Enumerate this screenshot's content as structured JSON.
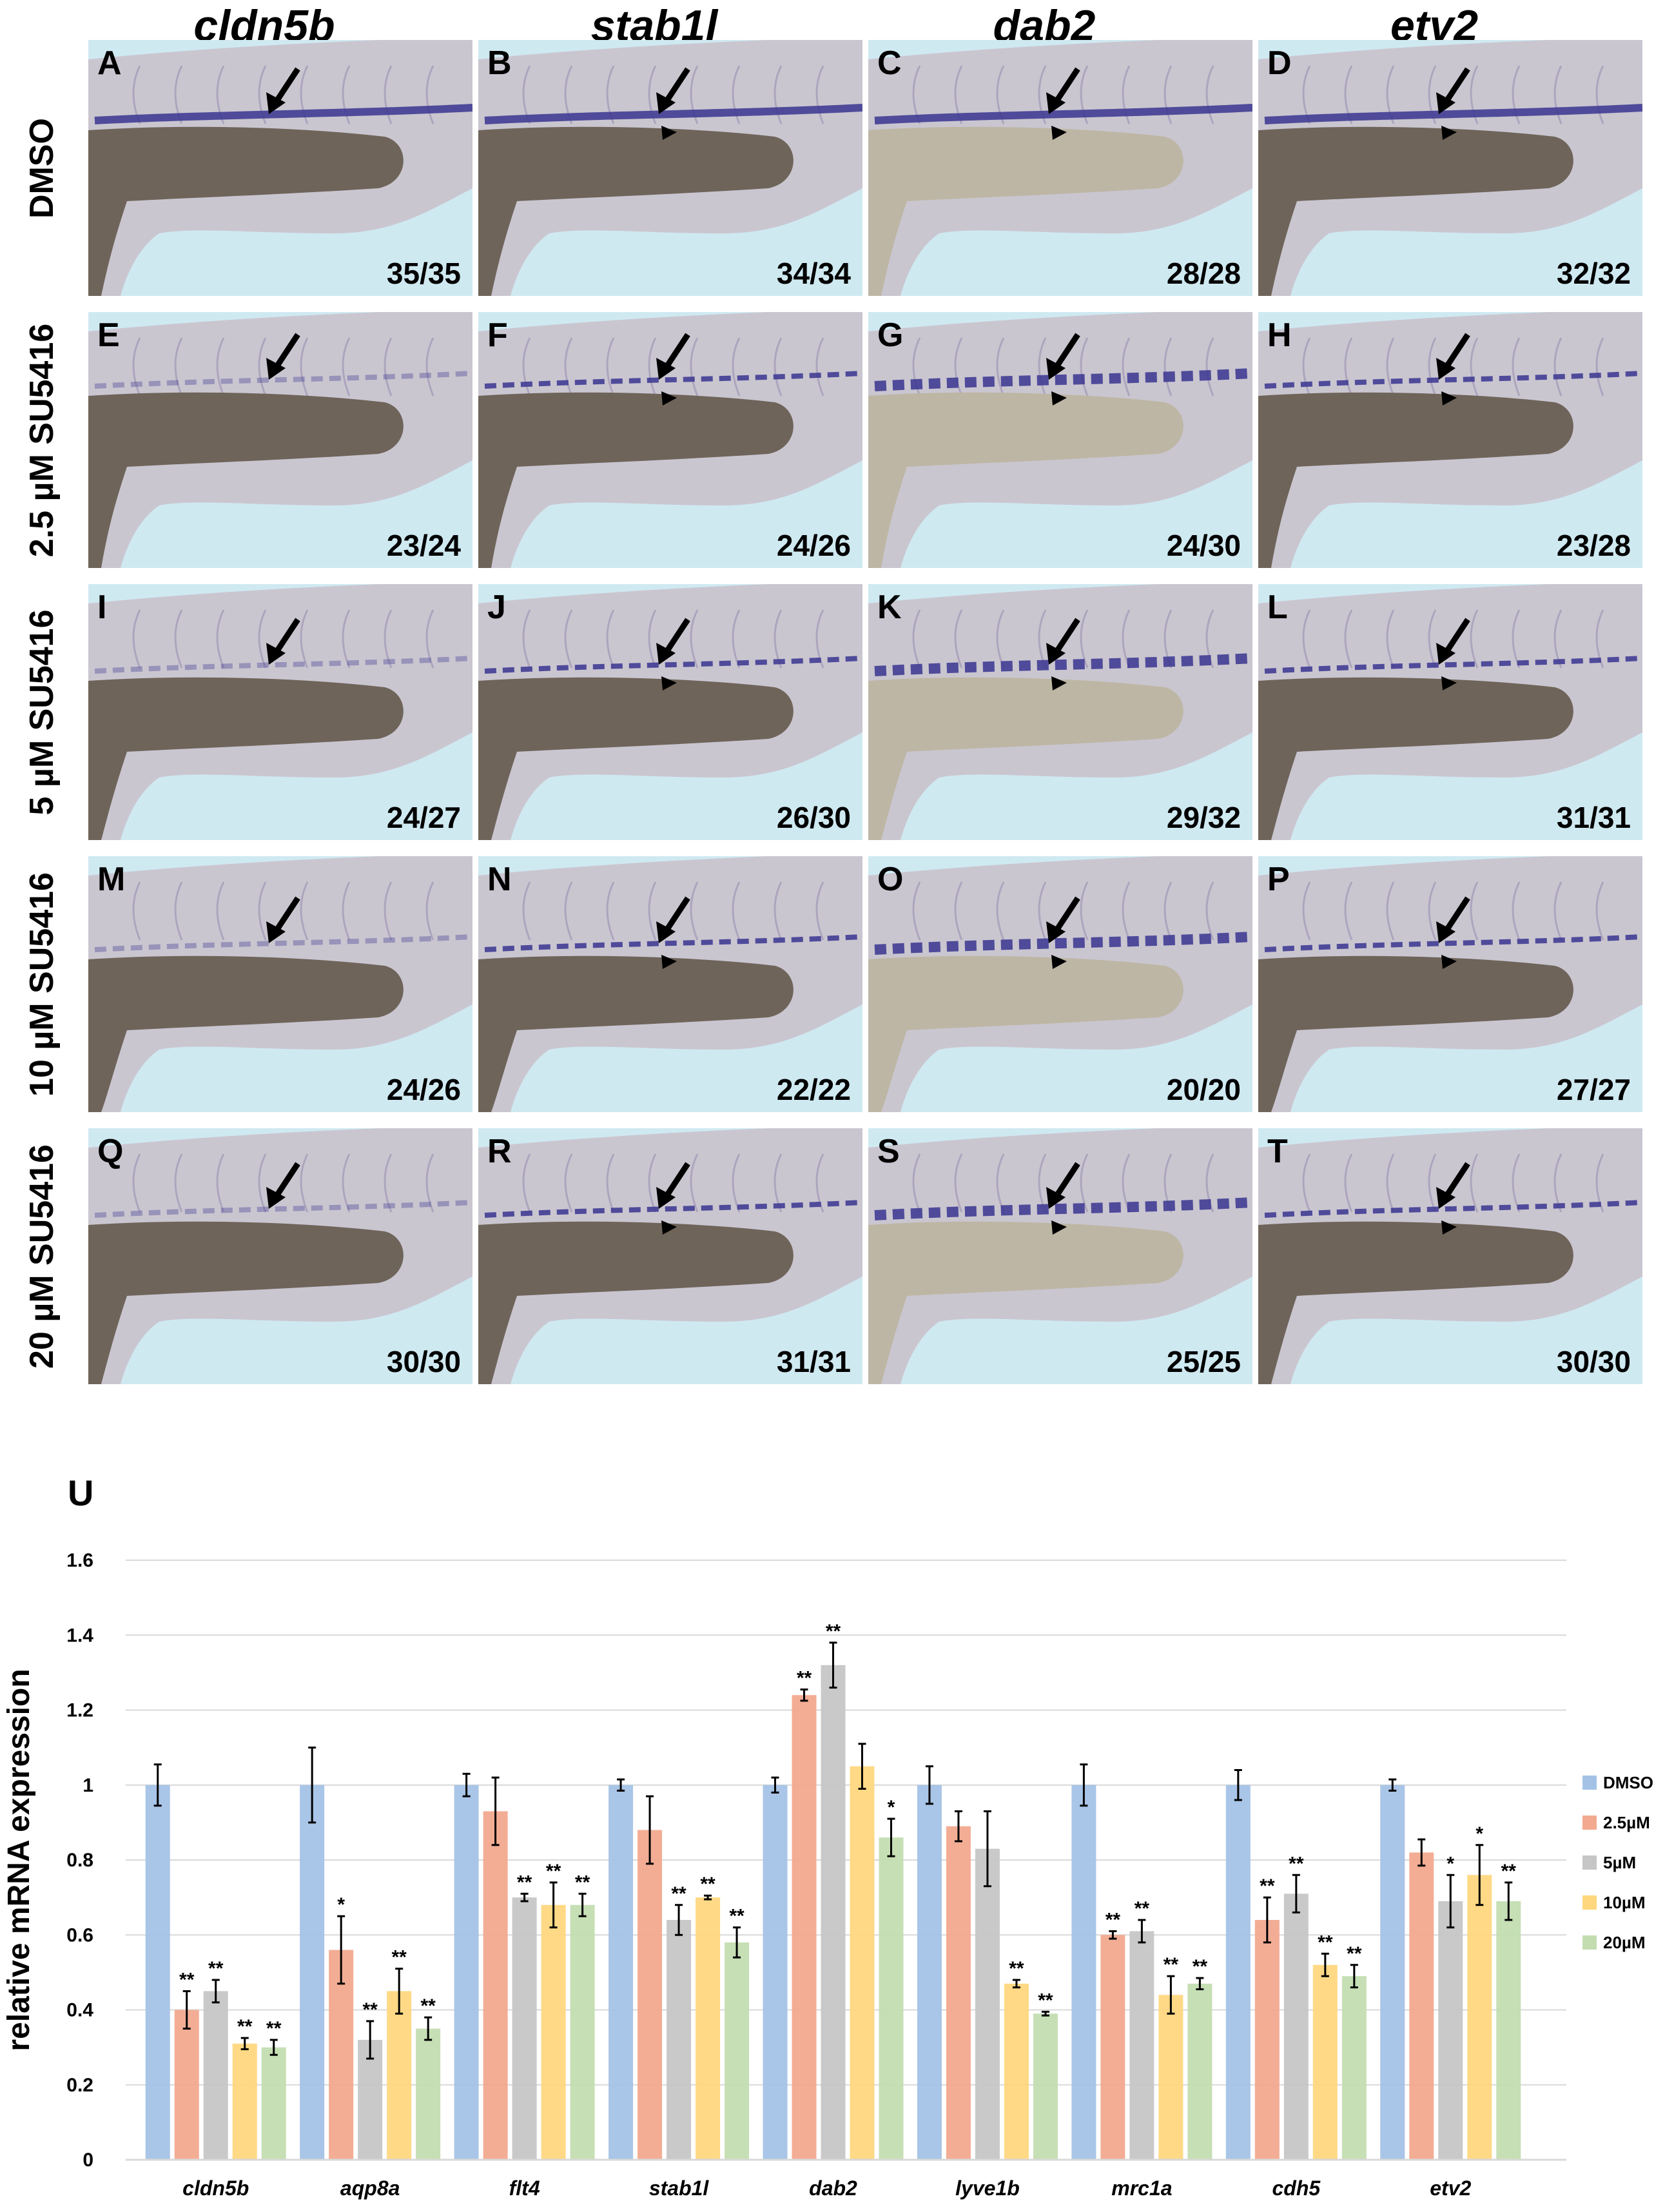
{
  "columns": [
    "cldn5b",
    "stab1l",
    "dab2",
    "etv2"
  ],
  "rows": [
    "DMSO",
    "2.5 µM SU5416",
    "5 µM SU5416",
    "10 µM SU5416",
    "20 µM SU5416"
  ],
  "panels": [
    {
      "label": "A",
      "count": "35/35",
      "arrowhead": false
    },
    {
      "label": "B",
      "count": "34/34",
      "arrowhead": true
    },
    {
      "label": "C",
      "count": "28/28",
      "arrowhead": true
    },
    {
      "label": "D",
      "count": "32/32",
      "arrowhead": true
    },
    {
      "label": "E",
      "count": "23/24",
      "arrowhead": false
    },
    {
      "label": "F",
      "count": "24/26",
      "arrowhead": true
    },
    {
      "label": "G",
      "count": "24/30",
      "arrowhead": true
    },
    {
      "label": "H",
      "count": "23/28",
      "arrowhead": true
    },
    {
      "label": "I",
      "count": "24/27",
      "arrowhead": false
    },
    {
      "label": "J",
      "count": "26/30",
      "arrowhead": true
    },
    {
      "label": "K",
      "count": "29/32",
      "arrowhead": true
    },
    {
      "label": "L",
      "count": "31/31",
      "arrowhead": true
    },
    {
      "label": "M",
      "count": "24/26",
      "arrowhead": false
    },
    {
      "label": "N",
      "count": "22/22",
      "arrowhead": true
    },
    {
      "label": "O",
      "count": "20/20",
      "arrowhead": true
    },
    {
      "label": "P",
      "count": "27/27",
      "arrowhead": true
    },
    {
      "label": "Q",
      "count": "30/30",
      "arrowhead": false
    },
    {
      "label": "R",
      "count": "31/31",
      "arrowhead": true
    },
    {
      "label": "S",
      "count": "25/25",
      "arrowhead": true
    },
    {
      "label": "T",
      "count": "30/30",
      "arrowhead": true
    }
  ],
  "colors": {
    "panel_bg": "#cfe9f1",
    "stain": "#3a3590",
    "embryo": "#c9c2cc",
    "yolk": "#6e645a"
  },
  "chart_data": {
    "panel_label": "U",
    "type": "bar",
    "ylabel": "relative mRNA expression",
    "xlabel": "",
    "ylim": [
      0,
      1.6
    ],
    "yticks": [
      "0",
      "0.2",
      "0.4",
      "0.6",
      "0.8",
      "1",
      "1.2",
      "1.4",
      "1.6"
    ],
    "grid": true,
    "legend_position": "right",
    "categories": [
      "cldn5b",
      "aqp8a",
      "flt4",
      "stab1l",
      "dab2",
      "lyve1b",
      "mrc1a",
      "cdh5",
      "etv2"
    ],
    "series": [
      {
        "name": "DMSO",
        "color": "#a4c2e6",
        "values": [
          1.0,
          1.0,
          1.0,
          1.0,
          1.0,
          1.0,
          1.0,
          1.0,
          1.0
        ],
        "errors": [
          0.055,
          0.1,
          0.03,
          0.015,
          0.02,
          0.05,
          0.055,
          0.04,
          0.015
        ],
        "sig": [
          "",
          "",
          "",
          "",
          "",
          "",
          "",
          "",
          ""
        ]
      },
      {
        "name": "2.5µM",
        "color": "#f2a98f",
        "values": [
          0.4,
          0.56,
          0.93,
          0.88,
          1.24,
          0.89,
          0.6,
          0.64,
          0.82
        ],
        "errors": [
          0.05,
          0.09,
          0.09,
          0.09,
          0.015,
          0.04,
          0.01,
          0.06,
          0.035
        ],
        "sig": [
          "**",
          "*",
          "",
          "",
          "**",
          "",
          "**",
          "**",
          ""
        ]
      },
      {
        "name": "5µM",
        "color": "#c6c6c6",
        "values": [
          0.45,
          0.32,
          0.7,
          0.64,
          1.32,
          0.83,
          0.61,
          0.71,
          0.69
        ],
        "errors": [
          0.03,
          0.05,
          0.01,
          0.04,
          0.06,
          0.1,
          0.03,
          0.05,
          0.07
        ],
        "sig": [
          "**",
          "**",
          "**",
          "**",
          "**",
          "",
          "**",
          "**",
          "*"
        ]
      },
      {
        "name": "10µM",
        "color": "#ffd77e",
        "values": [
          0.31,
          0.45,
          0.68,
          0.7,
          1.05,
          0.47,
          0.44,
          0.52,
          0.76
        ],
        "errors": [
          0.015,
          0.06,
          0.06,
          0.005,
          0.06,
          0.01,
          0.05,
          0.03,
          0.08
        ],
        "sig": [
          "**",
          "**",
          "**",
          "**",
          "",
          "**",
          "**",
          "**",
          "*"
        ]
      },
      {
        "name": "20µM",
        "color": "#c3ddb1",
        "values": [
          0.3,
          0.35,
          0.68,
          0.58,
          0.86,
          0.39,
          0.47,
          0.49,
          0.69
        ],
        "errors": [
          0.02,
          0.03,
          0.03,
          0.04,
          0.05,
          0.005,
          0.015,
          0.03,
          0.05
        ],
        "sig": [
          "**",
          "**",
          "**",
          "**",
          "*",
          "**",
          "**",
          "**",
          "**"
        ]
      }
    ]
  }
}
